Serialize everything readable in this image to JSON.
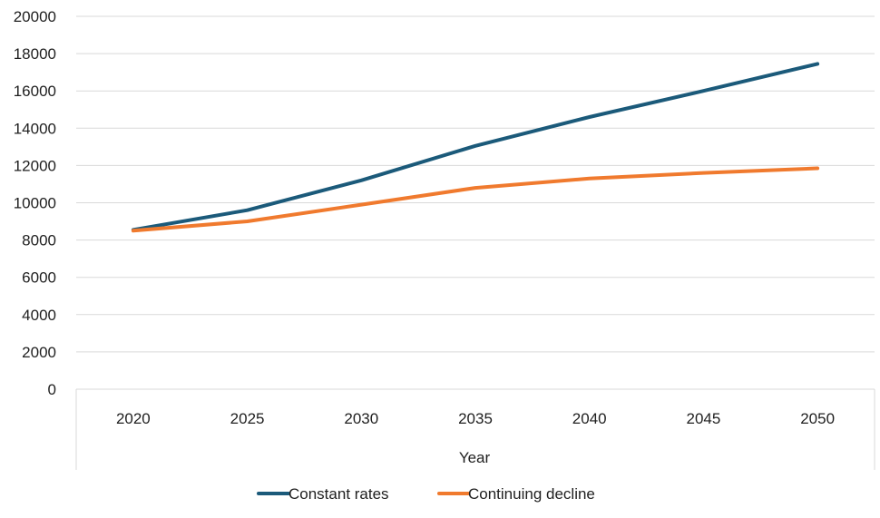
{
  "chart_data": {
    "type": "line",
    "title": "",
    "xlabel": "Year",
    "ylabel": "",
    "categories": [
      "2020",
      "2025",
      "2030",
      "2035",
      "2040",
      "2045",
      "2050"
    ],
    "series": [
      {
        "name": "Constant rates",
        "color": "#1b5a7a",
        "values": [
          8550,
          9600,
          11200,
          13050,
          14600,
          16000,
          17450
        ]
      },
      {
        "name": "Continuing decline",
        "color": "#f07a2e",
        "values": [
          8500,
          9000,
          9900,
          10800,
          11300,
          11600,
          11850
        ]
      }
    ],
    "ylim": [
      0,
      20000
    ],
    "yticks": [
      "0",
      "2000",
      "4000",
      "6000",
      "8000",
      "10000",
      "12000",
      "14000",
      "16000",
      "18000",
      "20000"
    ],
    "grid": "horizontal",
    "legend_position": "bottom"
  }
}
